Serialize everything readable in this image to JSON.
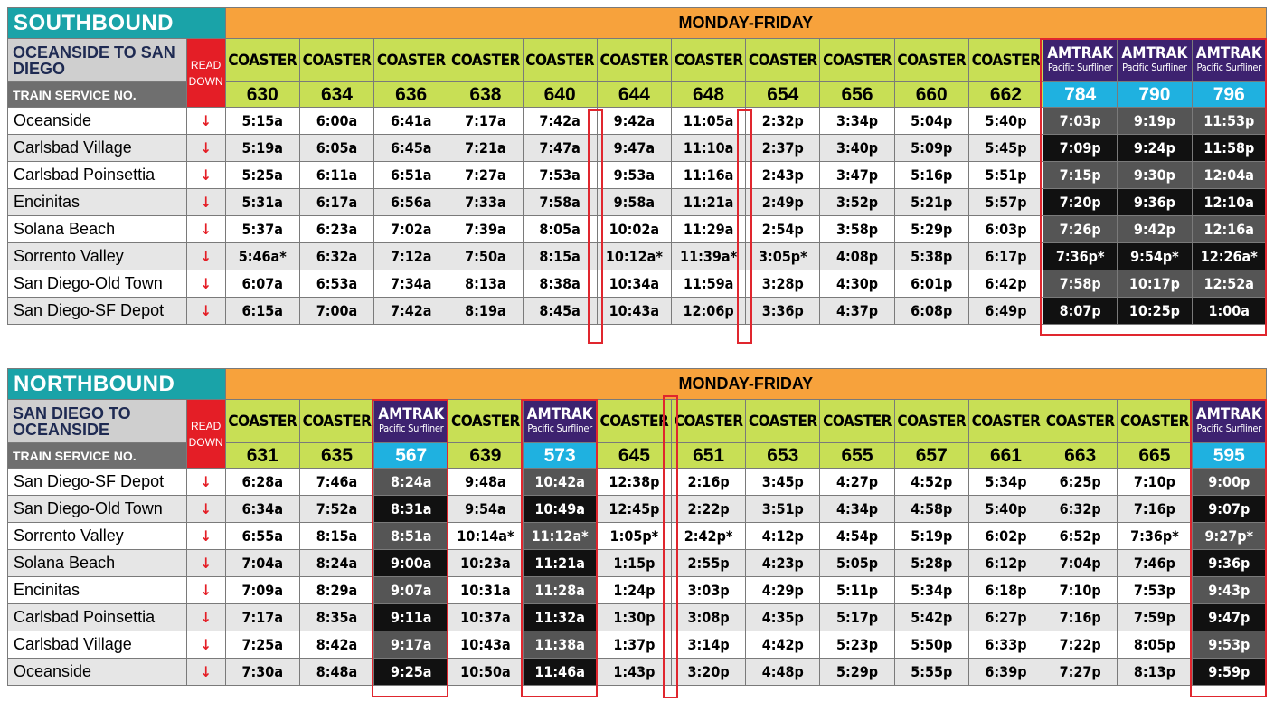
{
  "southbound": {
    "direction": "SOUTHBOUND",
    "days": "MONDAY-FRIDAY",
    "route": "OCEANSIDE TO SAN DIEGO",
    "read_down": "READ DOWN",
    "service_label": "TRAIN SERVICE NO.",
    "trains": [
      {
        "type": "COASTER",
        "no": "630"
      },
      {
        "type": "COASTER",
        "no": "634"
      },
      {
        "type": "COASTER",
        "no": "636"
      },
      {
        "type": "COASTER",
        "no": "638"
      },
      {
        "type": "COASTER",
        "no": "640"
      },
      {
        "type": "COASTER",
        "no": "644"
      },
      {
        "type": "COASTER",
        "no": "648"
      },
      {
        "type": "COASTER",
        "no": "654"
      },
      {
        "type": "COASTER",
        "no": "656"
      },
      {
        "type": "COASTER",
        "no": "660"
      },
      {
        "type": "COASTER",
        "no": "662"
      },
      {
        "type": "AMTRAK",
        "sub": "Pacific Surfliner",
        "no": "784"
      },
      {
        "type": "AMTRAK",
        "sub": "Pacific Surfliner",
        "no": "790"
      },
      {
        "type": "AMTRAK",
        "sub": "Pacific Surfliner",
        "no": "796"
      }
    ],
    "rows": [
      {
        "station": "Oceanside",
        "times": [
          "5:15a",
          "6:00a",
          "6:41a",
          "7:17a",
          "7:42a",
          "9:42a",
          "11:05a",
          "2:32p",
          "3:34p",
          "5:04p",
          "5:40p",
          "7:03p",
          "9:19p",
          "11:53p"
        ]
      },
      {
        "station": "Carlsbad Village",
        "times": [
          "5:19a",
          "6:05a",
          "6:45a",
          "7:21a",
          "7:47a",
          "9:47a",
          "11:10a",
          "2:37p",
          "3:40p",
          "5:09p",
          "5:45p",
          "7:09p",
          "9:24p",
          "11:58p"
        ]
      },
      {
        "station": "Carlsbad Poinsettia",
        "times": [
          "5:25a",
          "6:11a",
          "6:51a",
          "7:27a",
          "7:53a",
          "9:53a",
          "11:16a",
          "2:43p",
          "3:47p",
          "5:16p",
          "5:51p",
          "7:15p",
          "9:30p",
          "12:04a"
        ]
      },
      {
        "station": "Encinitas",
        "times": [
          "5:31a",
          "6:17a",
          "6:56a",
          "7:33a",
          "7:58a",
          "9:58a",
          "11:21a",
          "2:49p",
          "3:52p",
          "5:21p",
          "5:57p",
          "7:20p",
          "9:36p",
          "12:10a"
        ]
      },
      {
        "station": "Solana Beach",
        "times": [
          "5:37a",
          "6:23a",
          "7:02a",
          "7:39a",
          "8:05a",
          "10:02a",
          "11:29a",
          "2:54p",
          "3:58p",
          "5:29p",
          "6:03p",
          "7:26p",
          "9:42p",
          "12:16a"
        ]
      },
      {
        "station": "Sorrento Valley",
        "times": [
          "5:46a*",
          "6:32a",
          "7:12a",
          "7:50a",
          "8:15a",
          "10:12a*",
          "11:39a*",
          "3:05p*",
          "4:08p",
          "5:38p",
          "6:17p",
          "7:36p*",
          "9:54p*",
          "12:26a*"
        ]
      },
      {
        "station": "San Diego-Old Town",
        "times": [
          "6:07a",
          "6:53a",
          "7:34a",
          "8:13a",
          "8:38a",
          "10:34a",
          "11:59a",
          "3:28p",
          "4:30p",
          "6:01p",
          "6:42p",
          "7:58p",
          "10:17p",
          "12:52a"
        ]
      },
      {
        "station": "San Diego-SF Depot",
        "times": [
          "6:15a",
          "7:00a",
          "7:42a",
          "8:19a",
          "8:45a",
          "10:43a",
          "12:06p",
          "3:36p",
          "4:37p",
          "6:08p",
          "6:49p",
          "8:07p",
          "10:25p",
          "1:00a"
        ]
      }
    ]
  },
  "northbound": {
    "direction": "NORTHBOUND",
    "days": "MONDAY-FRIDAY",
    "route": "SAN DIEGO TO OCEANSIDE",
    "read_down": "READ DOWN",
    "service_label": "TRAIN SERVICE NO.",
    "trains": [
      {
        "type": "COASTER",
        "no": "631"
      },
      {
        "type": "COASTER",
        "no": "635"
      },
      {
        "type": "AMTRAK",
        "sub": "Pacific Surfliner",
        "no": "567"
      },
      {
        "type": "COASTER",
        "no": "639"
      },
      {
        "type": "AMTRAK",
        "sub": "Pacific Surfliner",
        "no": "573"
      },
      {
        "type": "COASTER",
        "no": "645"
      },
      {
        "type": "COASTER",
        "no": "651"
      },
      {
        "type": "COASTER",
        "no": "653"
      },
      {
        "type": "COASTER",
        "no": "655"
      },
      {
        "type": "COASTER",
        "no": "657"
      },
      {
        "type": "COASTER",
        "no": "661"
      },
      {
        "type": "COASTER",
        "no": "663"
      },
      {
        "type": "COASTER",
        "no": "665"
      },
      {
        "type": "AMTRAK",
        "sub": "Pacific Surfliner",
        "no": "595"
      }
    ],
    "rows": [
      {
        "station": "San Diego-SF Depot",
        "times": [
          "6:28a",
          "7:46a",
          "8:24a",
          "9:48a",
          "10:42a",
          "12:38p",
          "2:16p",
          "3:45p",
          "4:27p",
          "4:52p",
          "5:34p",
          "6:25p",
          "7:10p",
          "9:00p"
        ]
      },
      {
        "station": "San Diego-Old Town",
        "times": [
          "6:34a",
          "7:52a",
          "8:31a",
          "9:54a",
          "10:49a",
          "12:45p",
          "2:22p",
          "3:51p",
          "4:34p",
          "4:58p",
          "5:40p",
          "6:32p",
          "7:16p",
          "9:07p"
        ]
      },
      {
        "station": "Sorrento Valley",
        "times": [
          "6:55a",
          "8:15a",
          "8:51a",
          "10:14a*",
          "11:12a*",
          "1:05p*",
          "2:42p*",
          "4:12p",
          "4:54p",
          "5:19p",
          "6:02p",
          "6:52p",
          "7:36p*",
          "9:27p*"
        ]
      },
      {
        "station": "Solana Beach",
        "times": [
          "7:04a",
          "8:24a",
          "9:00a",
          "10:23a",
          "11:21a",
          "1:15p",
          "2:55p",
          "4:23p",
          "5:05p",
          "5:28p",
          "6:12p",
          "7:04p",
          "7:46p",
          "9:36p"
        ]
      },
      {
        "station": "Encinitas",
        "times": [
          "7:09a",
          "8:29a",
          "9:07a",
          "10:31a",
          "11:28a",
          "1:24p",
          "3:03p",
          "4:29p",
          "5:11p",
          "5:34p",
          "6:18p",
          "7:10p",
          "7:53p",
          "9:43p"
        ]
      },
      {
        "station": "Carlsbad Poinsettia",
        "times": [
          "7:17a",
          "8:35a",
          "9:11a",
          "10:37a",
          "11:32a",
          "1:30p",
          "3:08p",
          "4:35p",
          "5:17p",
          "5:42p",
          "6:27p",
          "7:16p",
          "7:59p",
          "9:47p"
        ]
      },
      {
        "station": "Carlsbad Village",
        "times": [
          "7:25a",
          "8:42a",
          "9:17a",
          "10:43a",
          "11:38a",
          "1:37p",
          "3:14p",
          "4:42p",
          "5:23p",
          "5:50p",
          "6:33p",
          "7:22p",
          "8:05p",
          "9:53p"
        ]
      },
      {
        "station": "Oceanside",
        "times": [
          "7:30a",
          "8:48a",
          "9:25a",
          "10:50a",
          "11:46a",
          "1:43p",
          "3:20p",
          "4:48p",
          "5:29p",
          "5:55p",
          "6:39p",
          "7:27p",
          "8:13p",
          "9:59p"
        ]
      }
    ]
  },
  "symbols": {
    "read_down_arrow": "↓"
  },
  "colors": {
    "direction_bg": "#1aa3a8",
    "days_bg": "#f7a23c",
    "coaster_bg": "#c8df55",
    "amtrak_bg": "#3d2270",
    "amtrak_no_bg": "#1fb1e0",
    "read_down_bg": "#e41e26",
    "highlight": "#e0262e"
  }
}
